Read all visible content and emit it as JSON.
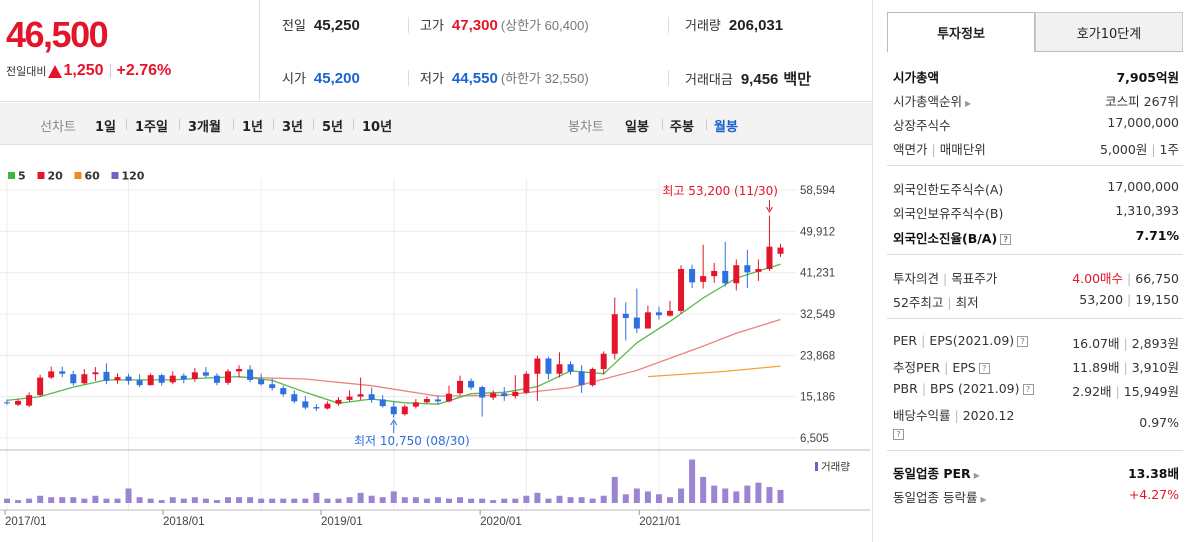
{
  "quote": {
    "price": "46,500",
    "change_label": "전일대비",
    "change_amount": "1,250",
    "change_pct": "+2.76%"
  },
  "stats": {
    "prev_label": "전일",
    "prev_value": "45,250",
    "high_label": "고가",
    "high_value": "47,300",
    "upper_limit": "(상한가 60,400)",
    "volume_label": "거래량",
    "volume_value": "206,031",
    "open_label": "시가",
    "open_value": "45,200",
    "low_label": "저가",
    "low_value": "44,550",
    "lower_limit": "(하한가 32,550)",
    "amount_label": "거래대금",
    "amount_value": "9,456",
    "amount_unit": "백만"
  },
  "period_bar": {
    "line_chart_label": "선차트",
    "periods": [
      "1일",
      "1주일",
      "3개월",
      "1년",
      "3년",
      "5년",
      "10년"
    ],
    "candle_label": "봉차트",
    "candle_types": [
      "일봉",
      "주봉",
      "월봉"
    ],
    "active_candle": "월봉"
  },
  "chart_data": {
    "type": "candlestick",
    "legend": [
      {
        "label": "5",
        "color": "#3db83b"
      },
      {
        "label": "20",
        "color": "#e4152b"
      },
      {
        "label": "60",
        "color": "#f08a24"
      },
      {
        "label": "120",
        "color": "#7d5cc7"
      }
    ],
    "y_ticks": [
      58594,
      49912,
      41231,
      32549,
      23868,
      15186,
      6505
    ],
    "y_tick_labels": [
      "58,594",
      "49,912",
      "41,231",
      "32,549",
      "23,868",
      "15,186",
      "6,505"
    ],
    "x_tick_labels": [
      "2017/01",
      "2018/01",
      "2019/01",
      "2020/01",
      "2021/01"
    ],
    "max_annotation": "최고 53,200 (11/30)",
    "min_annotation": "최저 10,750 (08/30)",
    "volume_label": "거래량",
    "candles": [
      [
        14000,
        13900,
        14600,
        13500
      ],
      [
        13500,
        14300,
        14700,
        13200
      ],
      [
        13300,
        15500,
        16100,
        13000
      ],
      [
        15500,
        19200,
        19800,
        15200
      ],
      [
        19200,
        20500,
        21500,
        18900
      ],
      [
        20500,
        20000,
        21500,
        19300
      ],
      [
        19900,
        18000,
        20600,
        17500
      ],
      [
        18000,
        19900,
        21000,
        17700
      ],
      [
        19900,
        20300,
        21400,
        18500
      ],
      [
        20400,
        18500,
        22200,
        17800
      ],
      [
        18600,
        19300,
        20100,
        17900
      ],
      [
        19400,
        18500,
        20000,
        17700
      ],
      [
        18600,
        17600,
        19900,
        17200
      ],
      [
        17600,
        19700,
        20100,
        17500
      ],
      [
        19700,
        18100,
        20000,
        17500
      ],
      [
        18200,
        19600,
        20500,
        17800
      ],
      [
        19600,
        18800,
        20100,
        18000
      ],
      [
        18900,
        20300,
        21200,
        18300
      ],
      [
        20300,
        19600,
        21400,
        19200
      ],
      [
        19600,
        18100,
        20100,
        17600
      ],
      [
        18100,
        20500,
        21000,
        17700
      ],
      [
        20500,
        21000,
        21800,
        19300
      ],
      [
        20900,
        18700,
        21800,
        18200
      ],
      [
        18800,
        17800,
        20000,
        17500
      ],
      [
        17800,
        17000,
        19000,
        16500
      ],
      [
        17000,
        15700,
        17500,
        15200
      ],
      [
        15700,
        14200,
        16500,
        13800
      ],
      [
        14200,
        12900,
        15300,
        12500
      ],
      [
        13000,
        12700,
        13600,
        12200
      ],
      [
        12700,
        13700,
        14200,
        12500
      ],
      [
        13700,
        14500,
        15100,
        13300
      ],
      [
        14500,
        15200,
        16500,
        14200
      ],
      [
        15200,
        15700,
        19200,
        14500
      ],
      [
        15700,
        14500,
        17100,
        13900
      ],
      [
        14600,
        13200,
        15500,
        12900
      ],
      [
        13100,
        11500,
        14100,
        10750
      ],
      [
        11500,
        13100,
        13500,
        11200
      ],
      [
        13100,
        14000,
        14700,
        12700
      ],
      [
        14000,
        14700,
        15200,
        13800
      ],
      [
        14600,
        14200,
        15400,
        13500
      ],
      [
        14200,
        15800,
        17500,
        14000
      ],
      [
        15900,
        18500,
        19600,
        15500
      ],
      [
        18500,
        17100,
        19000,
        16600
      ],
      [
        17200,
        15000,
        17500,
        11000
      ],
      [
        15000,
        15900,
        16500,
        14500
      ],
      [
        15900,
        15300,
        17200,
        14300
      ],
      [
        15300,
        16200,
        19700,
        14800
      ],
      [
        16000,
        20000,
        20500,
        15700
      ],
      [
        20000,
        23200,
        23800,
        14300
      ],
      [
        23200,
        20000,
        23600,
        18800
      ],
      [
        20000,
        22000,
        24500,
        19200
      ],
      [
        22000,
        20400,
        22600,
        19800
      ],
      [
        20500,
        17600,
        21800,
        16000
      ],
      [
        17600,
        21000,
        21300,
        17300
      ],
      [
        21000,
        24200,
        24700,
        19800
      ],
      [
        24200,
        32500,
        36000,
        23000
      ],
      [
        32600,
        31700,
        35000,
        27000
      ],
      [
        31800,
        29500,
        37900,
        28500
      ],
      [
        29500,
        32900,
        34300,
        29500
      ],
      [
        32900,
        32300,
        34100,
        31400
      ],
      [
        32200,
        33200,
        35300,
        32000
      ],
      [
        33200,
        42000,
        42800,
        32600
      ],
      [
        42000,
        39200,
        42900,
        38000
      ],
      [
        39300,
        40500,
        47100,
        37900
      ],
      [
        40500,
        41600,
        43300,
        39100
      ],
      [
        41600,
        39000,
        47700,
        38300
      ],
      [
        39000,
        42800,
        44000,
        37500
      ],
      [
        42800,
        41300,
        46000,
        38000
      ],
      [
        41400,
        42000,
        44000,
        39500
      ],
      [
        42000,
        46700,
        53200,
        41600
      ],
      [
        45200,
        46500,
        47300,
        44550
      ]
    ],
    "ma5": [
      [
        0,
        14400
      ],
      [
        3,
        15200
      ],
      [
        6,
        17200
      ],
      [
        9,
        18700
      ],
      [
        12,
        18700
      ],
      [
        15,
        18700
      ],
      [
        18,
        19100
      ],
      [
        21,
        19400
      ],
      [
        24,
        18600
      ],
      [
        27,
        16100
      ],
      [
        30,
        13800
      ],
      [
        33,
        14700
      ],
      [
        36,
        13900
      ],
      [
        39,
        13600
      ],
      [
        42,
        15800
      ],
      [
        45,
        16100
      ],
      [
        48,
        17300
      ],
      [
        51,
        20600
      ],
      [
        54,
        20000
      ],
      [
        57,
        26500
      ],
      [
        60,
        31000
      ],
      [
        63,
        35900
      ],
      [
        66,
        40100
      ],
      [
        69,
        42300
      ],
      [
        70,
        43000
      ]
    ],
    "ma20": [
      [
        21,
        19300
      ],
      [
        27,
        18900
      ],
      [
        33,
        17500
      ],
      [
        39,
        15300
      ],
      [
        45,
        15500
      ],
      [
        51,
        17100
      ],
      [
        57,
        20700
      ],
      [
        63,
        25800
      ],
      [
        66,
        28500
      ],
      [
        70,
        31400
      ]
    ],
    "ma60": [
      [
        58,
        19400
      ],
      [
        65,
        20500
      ],
      [
        70,
        21600
      ]
    ],
    "volume": [
      3,
      2,
      3,
      5,
      4,
      4,
      4,
      3,
      5,
      3,
      3,
      10,
      4,
      3,
      2,
      4,
      3,
      4,
      3,
      2,
      4,
      4,
      4,
      3,
      3,
      3,
      3,
      3,
      7,
      3,
      3,
      4,
      7,
      5,
      4,
      8,
      4,
      4,
      3,
      4,
      3,
      4,
      3,
      3,
      2,
      3,
      3,
      5,
      7,
      3,
      5,
      4,
      4,
      3,
      5,
      18,
      6,
      10,
      8,
      6,
      4,
      10,
      30,
      18,
      12,
      10,
      8,
      12,
      14,
      11,
      9
    ]
  },
  "invest": {
    "tab_info": "투자정보",
    "tab_order": "호가10단계",
    "rows": [
      {
        "label": "시가총액",
        "value": "7,905억원",
        "bold": true
      },
      {
        "label": "시가총액순위",
        "value": "코스피 267위",
        "arrow": true
      },
      {
        "label": "상장주식수",
        "value": "17,000,000"
      },
      {
        "label": "액면가",
        "label2": "매매단위",
        "value": "5,000원",
        "value2": "1주"
      },
      {
        "label": "외국인한도주식수(A)",
        "value": "17,000,000"
      },
      {
        "label": "외국인보유주식수(B)",
        "value": "1,310,393"
      },
      {
        "label": "외국인소진율(B/A)",
        "value": "7.71%",
        "bold": true,
        "help": true
      },
      {
        "label": "투자의견",
        "label2": "목표주가",
        "value": "4.00매수",
        "value2": "66,750"
      },
      {
        "label": "52주최고",
        "label2": "최저",
        "value": "53,200",
        "value2": "19,150"
      },
      {
        "label": "PER",
        "label2": "EPS(2021.09)",
        "value": "16.07배",
        "value2": "2,893원"
      },
      {
        "label": "추정PER",
        "label2": "EPS",
        "value": "11.89배",
        "value2": "3,910원"
      },
      {
        "label": "PBR",
        "label2": "BPS (2021.09)",
        "value": "2.92배",
        "value2": "15,949원"
      },
      {
        "label": "배당수익률",
        "label2": "2020.12",
        "value": "0.97%"
      },
      {
        "label": "동일업종 PER",
        "value": "13.38배",
        "bold": true
      },
      {
        "label": "동일업종 등락률",
        "value": "+4.27%"
      }
    ]
  }
}
